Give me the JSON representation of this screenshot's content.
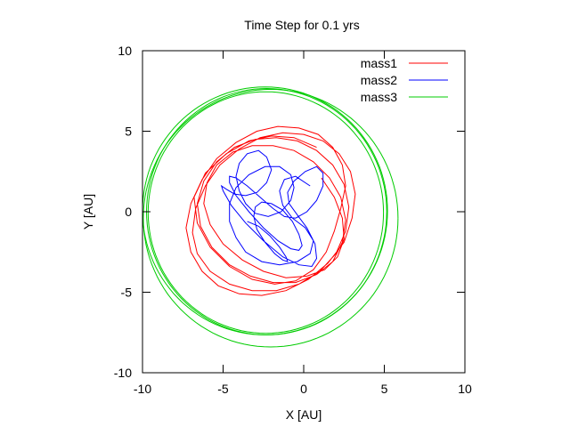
{
  "chart_data": {
    "type": "line",
    "title": "Time Step for 0.1 yrs",
    "xlabel": "X [AU]",
    "ylabel": "Y [AU]",
    "xlim": [
      -10,
      10
    ],
    "ylim": [
      -10,
      10
    ],
    "xticks": [
      "-10",
      "-5",
      "0",
      "5",
      "10"
    ],
    "yticks": [
      "-10",
      "-5",
      "0",
      "5",
      "10"
    ],
    "grid": false,
    "legend_position": "top-right",
    "series": [
      {
        "name": "mass1",
        "color": "#ff0000",
        "style": "polyline",
        "x": [
          0.8,
          -0.6,
          -2.0,
          -3.4,
          -4.8,
          -6.1,
          -6.8,
          -6.6,
          -5.8,
          -4.6,
          -3.2,
          -1.8,
          -0.5,
          0.6,
          1.4,
          1.9,
          2.3,
          2.6,
          2.4,
          1.8,
          0.9,
          -0.3,
          -1.6,
          -2.9,
          -4.2,
          -5.4,
          -6.3,
          -7.0,
          -7.3,
          -7.0,
          -6.3,
          -5.3,
          -4.0,
          -2.6,
          -1.1,
          0.3,
          1.5,
          2.5,
          3.0,
          3.2,
          2.9,
          2.2,
          1.2,
          0.0,
          -1.3,
          -2.7,
          -4.0,
          -5.2,
          -6.1,
          -6.7,
          -6.9,
          -6.6,
          -5.8,
          -4.6,
          -3.2,
          -1.7,
          -0.3,
          1.0,
          2.0,
          2.6,
          2.8,
          2.5,
          1.8,
          0.8,
          -0.4,
          -1.7,
          -3.0,
          -4.3,
          -5.4,
          -6.2,
          -6.6,
          -6.4,
          -5.7,
          -4.6,
          -3.3,
          -1.9,
          -0.5,
          0.8,
          1.8,
          2.4,
          2.6,
          2.3,
          1.6,
          0.6,
          -0.6,
          -1.9,
          -3.2,
          -4.4,
          -5.4,
          -6.0,
          -6.2,
          -5.8,
          -5.0,
          -3.8,
          -2.5,
          -1.1,
          0.2,
          1.3,
          2.1,
          2.5,
          2.4,
          1.9,
          1.1
        ],
        "y": [
          4.0,
          4.6,
          4.7,
          4.4,
          3.6,
          2.4,
          0.9,
          -0.7,
          -2.2,
          -3.4,
          -4.2,
          -4.5,
          -4.3,
          -3.6,
          -2.5,
          -1.2,
          0.2,
          1.6,
          2.9,
          4.0,
          4.8,
          5.2,
          5.3,
          5.0,
          4.3,
          3.3,
          2.0,
          0.5,
          -1.0,
          -2.5,
          -3.7,
          -4.6,
          -5.1,
          -5.2,
          -4.9,
          -4.2,
          -3.2,
          -1.9,
          -0.4,
          1.1,
          2.5,
          3.6,
          4.4,
          4.8,
          4.9,
          4.6,
          3.9,
          2.9,
          1.6,
          0.2,
          -1.3,
          -2.6,
          -3.7,
          -4.5,
          -4.9,
          -4.9,
          -4.5,
          -3.7,
          -2.6,
          -1.2,
          0.3,
          1.7,
          2.9,
          3.8,
          4.4,
          4.6,
          4.5,
          4.0,
          3.1,
          1.9,
          0.5,
          -0.9,
          -2.2,
          -3.3,
          -4.0,
          -4.4,
          -4.4,
          -3.9,
          -3.1,
          -1.9,
          -0.5,
          0.9,
          2.1,
          3.1,
          3.8,
          4.1,
          4.1,
          3.7,
          2.9,
          1.8,
          0.5,
          -0.8,
          -2.0,
          -3.0,
          -3.7,
          -4.1,
          -4.0,
          -3.6,
          -2.8,
          -1.7,
          -0.4,
          0.9,
          2.1
        ]
      },
      {
        "name": "mass2",
        "color": "#0000ff",
        "style": "polyline",
        "x": [
          0.4,
          -0.5,
          -1.2,
          -1.5,
          -1.3,
          -0.7,
          0.1,
          0.6,
          0.4,
          -0.4,
          -1.5,
          -2.6,
          -3.6,
          -4.2,
          -4.6,
          -4.6,
          -4.2,
          -3.4,
          -2.4,
          -1.5,
          -0.8,
          -0.6,
          -0.8,
          -1.4,
          -2.2,
          -3.0,
          -3.6,
          -4.0,
          -4.2,
          -4.0,
          -3.5,
          -2.8,
          -2.3,
          -2.0,
          -2.3,
          -2.9,
          -3.6,
          -4.3,
          -4.8,
          -5.1,
          -5.0,
          -4.5,
          -3.6,
          -2.5,
          -1.3,
          -0.3,
          0.5,
          0.8,
          0.7,
          0.2,
          -0.4,
          -0.9,
          -1.0,
          -0.6,
          0.1,
          0.8,
          1.2,
          1.2,
          0.8,
          0.2,
          -0.5,
          -1.2,
          -1.9,
          -2.7,
          -3.5,
          -4.2,
          -4.6,
          -4.6,
          -4.2,
          -3.4,
          -2.5,
          -1.6,
          -0.8,
          -0.3,
          -0.1,
          -0.3,
          -0.7,
          -1.3,
          -2.0,
          -2.6,
          -3.0,
          -3.1,
          -2.9,
          -2.4,
          -1.8,
          -1.3,
          -1.0,
          -1.1,
          -1.5,
          -2.1,
          -2.8,
          -3.5
        ],
        "y": [
          1.6,
          2.2,
          2.0,
          1.3,
          0.4,
          -0.4,
          -1.0,
          -1.8,
          -2.6,
          -3.1,
          -3.3,
          -3.1,
          -2.5,
          -1.6,
          -0.6,
          0.5,
          1.5,
          2.3,
          2.8,
          2.8,
          2.3,
          1.5,
          0.7,
          0.0,
          -0.3,
          -0.1,
          0.5,
          1.3,
          2.2,
          3.0,
          3.6,
          3.8,
          3.4,
          2.6,
          1.8,
          1.2,
          1.0,
          1.1,
          1.4,
          1.6,
          1.3,
          0.4,
          -0.7,
          -1.8,
          -2.8,
          -3.3,
          -3.4,
          -2.9,
          -2.0,
          -1.0,
          -0.2,
          0.5,
          1.2,
          1.9,
          2.5,
          2.8,
          2.4,
          1.6,
          0.7,
          0.0,
          -0.4,
          -0.3,
          0.2,
          0.9,
          1.6,
          2.1,
          2.2,
          1.8,
          1.0,
          0.0,
          -1.0,
          -1.8,
          -2.3,
          -2.4,
          -2.1,
          -1.4,
          -0.6,
          0.1,
          0.5,
          0.6,
          0.3,
          -0.3,
          -1.1,
          -1.9,
          -2.6,
          -3.0,
          -3.1,
          -2.8,
          -2.2,
          -1.5,
          -0.9,
          -0.6
        ]
      },
      {
        "name": "mass3",
        "color": "#00cc00",
        "style": "ellipses",
        "orbits": [
          {
            "cx": -2.3,
            "cy": 0.0,
            "rx": 7.45,
            "ry": 7.65
          },
          {
            "cx": -2.4,
            "cy": 0.05,
            "rx": 7.6,
            "ry": 7.7
          },
          {
            "cx": -2.05,
            "cy": -0.4,
            "rx": 7.9,
            "ry": 8.0
          },
          {
            "cx": -2.35,
            "cy": -0.05,
            "rx": 7.3,
            "ry": 7.5
          }
        ]
      }
    ]
  }
}
